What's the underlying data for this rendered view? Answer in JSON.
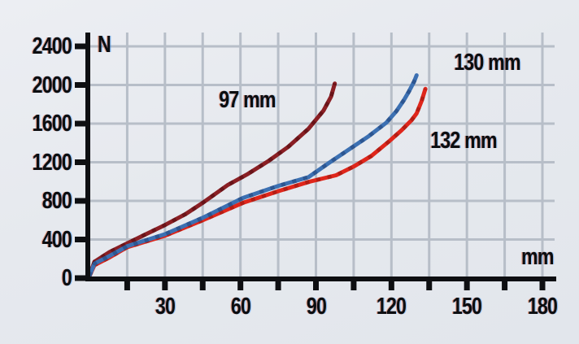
{
  "colors": {
    "background": "#e6e9ee",
    "grid": "#b7bec8",
    "axis": "#0e0f12",
    "text": "#0c0d10",
    "curve_97": "#8a1f24",
    "curve_97_shade": "#470a0e",
    "curve_132": "#df261b",
    "curve_132_shade": "#8c130e",
    "curve_130": "#3c70b2",
    "curve_130_shade": "#1d3c70"
  },
  "chart_data": {
    "type": "line",
    "title": "",
    "xlabel": "mm",
    "ylabel": "N",
    "xlim": [
      0,
      185
    ],
    "ylim": [
      0,
      2550
    ],
    "grid": true,
    "x_major_ticks": [
      30,
      60,
      90,
      120,
      150,
      180
    ],
    "x_minor_tick_step": 15,
    "x_max_tick": 180,
    "y_ticks": [
      0,
      400,
      800,
      1200,
      1600,
      2000,
      2400
    ],
    "legend_position": "inline-annotations",
    "series": [
      {
        "name": "97 mm",
        "color": "#8a1f24",
        "shade": "#470a0e",
        "points": [
          [
            0,
            30
          ],
          [
            2,
            170
          ],
          [
            8,
            270
          ],
          [
            15,
            360
          ],
          [
            22,
            450
          ],
          [
            30,
            550
          ],
          [
            38,
            660
          ],
          [
            45,
            780
          ],
          [
            55,
            965
          ],
          [
            63,
            1080
          ],
          [
            71,
            1210
          ],
          [
            79,
            1360
          ],
          [
            87,
            1545
          ],
          [
            93,
            1735
          ],
          [
            96,
            1880
          ],
          [
            97.5,
            2015
          ]
        ]
      },
      {
        "name": "132 mm",
        "color": "#df261b",
        "shade": "#8c130e",
        "points": [
          [
            0,
            20
          ],
          [
            2,
            135
          ],
          [
            8,
            215
          ],
          [
            15,
            320
          ],
          [
            30,
            440
          ],
          [
            45,
            600
          ],
          [
            61,
            780
          ],
          [
            75,
            900
          ],
          [
            87,
            995
          ],
          [
            98,
            1065
          ],
          [
            105,
            1155
          ],
          [
            112,
            1265
          ],
          [
            119,
            1415
          ],
          [
            124,
            1530
          ],
          [
            128,
            1635
          ],
          [
            130,
            1705
          ],
          [
            132,
            1835
          ],
          [
            133.5,
            1960
          ]
        ]
      },
      {
        "name": "130 mm",
        "color": "#3c70b2",
        "shade": "#1d3c70",
        "points": [
          [
            0,
            25
          ],
          [
            2,
            150
          ],
          [
            8,
            230
          ],
          [
            15,
            330
          ],
          [
            30,
            455
          ],
          [
            45,
            625
          ],
          [
            61,
            830
          ],
          [
            75,
            955
          ],
          [
            87,
            1045
          ],
          [
            95,
            1190
          ],
          [
            103,
            1330
          ],
          [
            111,
            1470
          ],
          [
            118,
            1610
          ],
          [
            122,
            1730
          ],
          [
            125,
            1845
          ],
          [
            127,
            1935
          ],
          [
            129,
            2035
          ],
          [
            130,
            2100
          ]
        ]
      }
    ]
  }
}
